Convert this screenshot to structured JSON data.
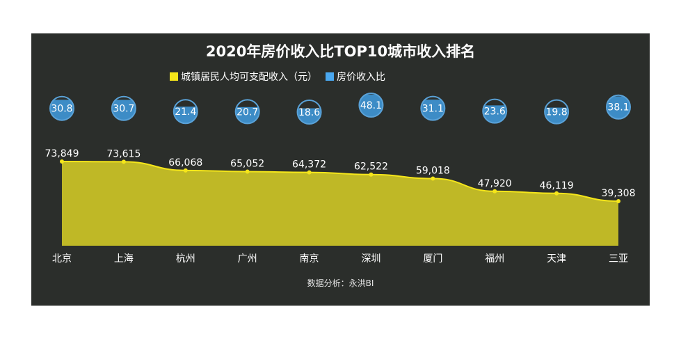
{
  "chart_data": {
    "type": "area",
    "title": "2020年房价收入比TOP10城市收入排名",
    "categories": [
      "北京",
      "上海",
      "杭州",
      "广州",
      "南京",
      "深圳",
      "厦门",
      "福州",
      "天津",
      "三亚"
    ],
    "series": [
      {
        "name": "城镇居民人均可支配收入（元）",
        "type": "area",
        "color": "#f5e61a",
        "fill": "#bfb826",
        "values": [
          73849,
          73615,
          66068,
          65052,
          64372,
          62522,
          59018,
          47920,
          46119,
          39308
        ],
        "labels": [
          "73,849",
          "73,615",
          "66,068",
          "65,052",
          "64,372",
          "62,522",
          "59,018",
          "47,920",
          "46,119",
          "39,308"
        ]
      },
      {
        "name": "房价收入比",
        "type": "liquid-bubble",
        "color": "#4aa8f0",
        "values": [
          30.8,
          30.7,
          21.4,
          20.7,
          18.6,
          48.1,
          31.1,
          23.6,
          19.8,
          38.1
        ],
        "labels": [
          "30.8",
          "30.7",
          "21.4",
          "20.7",
          "18.6",
          "48.1",
          "31.1",
          "23.6",
          "19.8",
          "38.1"
        ]
      }
    ],
    "legend_position": "top",
    "grid": false,
    "xlabel": "",
    "ylabel": ""
  },
  "header": {
    "title": "2020年房价收入比TOP10城市收入排名"
  },
  "legend": {
    "items": [
      {
        "label": "城镇居民人均可支配收入（元）",
        "color": "#f5e61a"
      },
      {
        "label": "房价收入比",
        "color": "#4aa8f0"
      }
    ]
  },
  "footer": {
    "source": "数据分析：永洪BI"
  },
  "colors": {
    "background": "#2b2e2b",
    "area_fill": "#bfb826",
    "line": "#f5e61a",
    "bubble": "#3d8cc6",
    "bubble_border": "#5aa2d8"
  }
}
